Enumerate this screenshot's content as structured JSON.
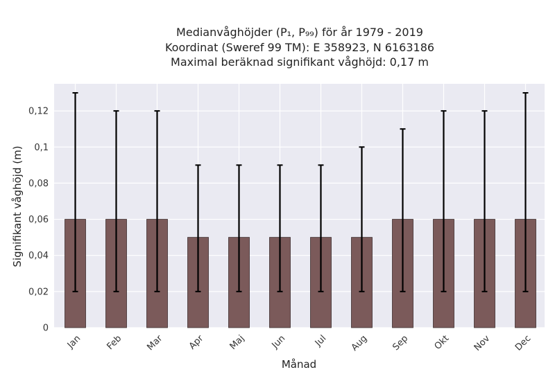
{
  "chart_data": {
    "type": "bar",
    "title_lines": [
      "Medianvåghöjder (P₁, P₉₉) för år 1979 - 2019",
      "Koordinat (Sweref 99 TM): E 358923, N 6163186",
      "Maximal beräknad signifikant våghöjd: 0,17 m"
    ],
    "xlabel": "Månad",
    "ylabel": "Signifikant våghöjd (m)",
    "categories": [
      "Jan",
      "Feb",
      "Mar",
      "Apr",
      "Maj",
      "Jun",
      "Jul",
      "Aug",
      "Sep",
      "Okt",
      "Nov",
      "Dec"
    ],
    "values": [
      0.06,
      0.06,
      0.06,
      0.05,
      0.05,
      0.05,
      0.05,
      0.05,
      0.06,
      0.06,
      0.06,
      0.06
    ],
    "error_low": [
      0.02,
      0.02,
      0.02,
      0.02,
      0.02,
      0.02,
      0.02,
      0.02,
      0.02,
      0.02,
      0.02,
      0.02
    ],
    "error_high": [
      0.13,
      0.12,
      0.12,
      0.09,
      0.09,
      0.09,
      0.09,
      0.1,
      0.11,
      0.12,
      0.12,
      0.13
    ],
    "ylim": [
      0,
      0.135
    ],
    "yticks": [
      0,
      0.02,
      0.04,
      0.06,
      0.08,
      0.1,
      0.12
    ],
    "ytick_labels": [
      "0",
      "0,02",
      "0,04",
      "0,06",
      "0,08",
      "0,1",
      "0,12"
    ],
    "grid": true,
    "colors": {
      "bar": "#7b5a5a",
      "bar_edge": "#3d2d2d",
      "error": "#000000",
      "plot_bg": "#eaeaf2",
      "grid": "#ffffff"
    }
  }
}
